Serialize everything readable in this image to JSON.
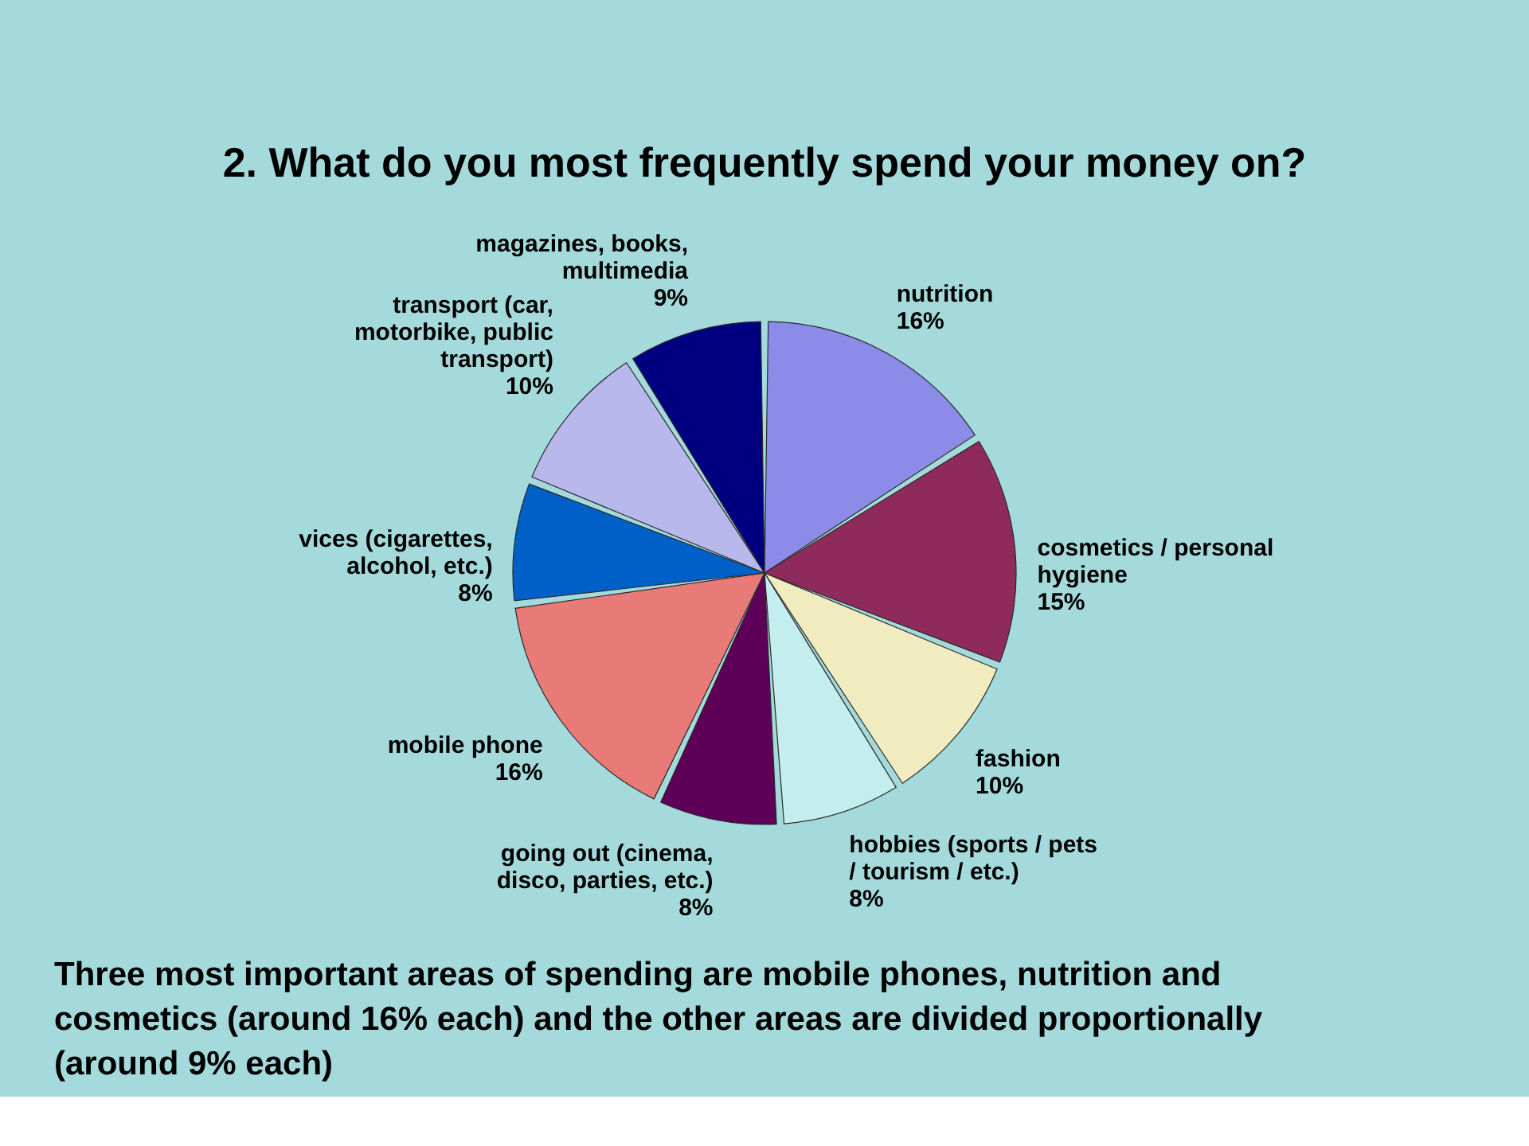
{
  "chart_data": {
    "type": "pie",
    "title": "2. What do you most frequently spend your money on?",
    "categories": [
      "nutrition",
      "cosmetics / personal hygiene",
      "fashion",
      "hobbies (sports / pets / tourism / etc.)",
      "going out (cinema, disco, parties, etc.)",
      "mobile phone",
      "vices (cigarettes, alcohol, etc.)",
      "transport (car, motorbike, public transport)",
      "magazines, books, multimedia"
    ],
    "values": [
      16,
      15,
      10,
      8,
      8,
      16,
      8,
      10,
      9
    ],
    "colors": [
      "#8c8ce8",
      "#8e2b5a",
      "#f0ecc0",
      "#c4eeee",
      "#5e0058",
      "#e87a78",
      "#0060c8",
      "#b8b8ec",
      "#000080"
    ],
    "value_labels": [
      "16%",
      "15%",
      "10%",
      "8%",
      "8%",
      "16%",
      "8%",
      "10%",
      "9%"
    ],
    "annotations": [
      "Three most important areas of spending are mobile phones, nutrition and cosmetics (around 16% each) and the other areas are divided proportionally (around 9% each)"
    ]
  }
}
